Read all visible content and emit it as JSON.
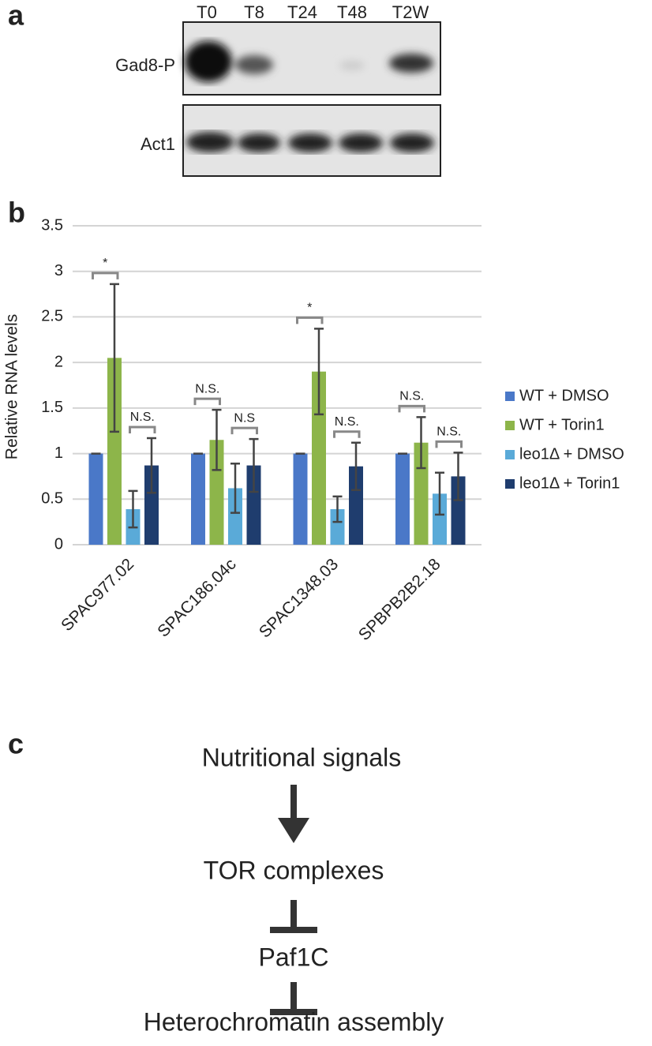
{
  "panel_a": {
    "label": "a",
    "lanes": [
      "T0",
      "T8",
      "T24",
      "T48",
      "T2W"
    ],
    "rows": [
      "Gad8-P",
      "Act1"
    ]
  },
  "panel_b_label": "b",
  "chart_data": {
    "type": "bar",
    "y_label": "Relative RNA levels",
    "categories": [
      "SPAC977.02",
      "SPAC186.04c",
      "SPAC1348.03",
      "SPBPB2B2.18"
    ],
    "series": [
      {
        "name": "WT + DMSO",
        "color": "#4a78c8",
        "values": [
          1,
          1,
          1,
          1
        ],
        "errors": [
          0,
          0,
          0,
          0
        ]
      },
      {
        "name": "WT + Torin1",
        "color": "#8db54a",
        "values": [
          2.05,
          1.15,
          1.9,
          1.12
        ],
        "errors": [
          0.81,
          0.33,
          0.47,
          0.28
        ]
      },
      {
        "name": "leo1Δ + DMSO",
        "color": "#5aaad8",
        "values": [
          0.39,
          0.62,
          0.39,
          0.56
        ],
        "errors": [
          0.2,
          0.27,
          0.14,
          0.23
        ]
      },
      {
        "name": "leo1Δ + Torin1",
        "color": "#1f3d6e",
        "values": [
          0.87,
          0.87,
          0.86,
          0.75
        ],
        "errors": [
          0.3,
          0.29,
          0.26,
          0.26
        ]
      }
    ],
    "significance": [
      [
        "*",
        "N.S."
      ],
      [
        "N.S.",
        "N.S"
      ],
      [
        "*",
        "N.S."
      ],
      [
        "N.S.",
        "N.S."
      ]
    ],
    "ylim": [
      0,
      3.5
    ],
    "yticks": [
      0,
      {
        "value": 0.5,
        "label": "0.5"
      },
      1,
      {
        "value": 1.5,
        "label": "1.5"
      },
      2,
      {
        "value": 2.5,
        "label": "2.5"
      },
      3,
      {
        "value": 3.5,
        "label": "3.5"
      }
    ],
    "grid": true,
    "legend": "right"
  },
  "panel_c": {
    "label": "c",
    "nodes": [
      "Nutritional signals",
      "TOR complexes",
      "Paf1C",
      "Heterochromatin assembly"
    ]
  }
}
